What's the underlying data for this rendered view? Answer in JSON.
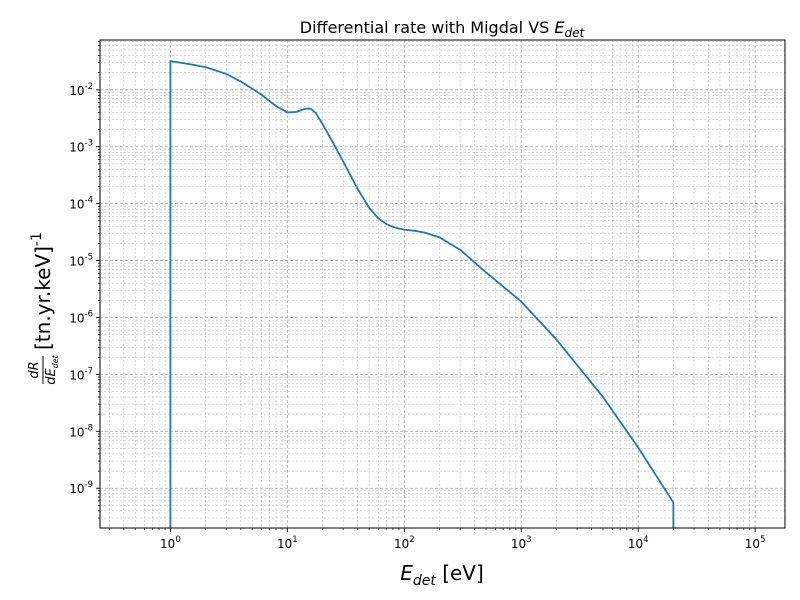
{
  "chart_data": {
    "type": "line",
    "title": "Differential rate with Migdal VS ",
    "title_math": {
      "base": "E",
      "sub": "det"
    },
    "xlabel_math": {
      "base": "E",
      "sub": "det"
    },
    "xlabel_unit": " [eV]",
    "ylabel_fraction": {
      "numerator": "dR",
      "denominator_base": "dE",
      "denominator_sub": "det"
    },
    "ylabel_unit": " [tn.yr.keV]",
    "ylabel_sup": "-1",
    "x_scale": "log",
    "y_scale": "log",
    "xlim": [
      0.25,
      180000
    ],
    "ylim": [
      2e-10,
      0.075
    ],
    "x_tick_base": "10",
    "x_tick_exponents": [
      "0",
      "1",
      "2",
      "3",
      "4",
      "5"
    ],
    "y_tick_base": "10",
    "y_tick_exponents": [
      "-9",
      "-8",
      "-7",
      "-6",
      "-5",
      "-4",
      "-3",
      "-2"
    ],
    "grid": {
      "major": true,
      "minor": true,
      "style": "dashed"
    },
    "series": [
      {
        "color": "#1f77b4",
        "x": [
          1.0,
          1.0,
          1.5,
          2.0,
          3.0,
          4.0,
          5.0,
          6.0,
          7.0,
          8.0,
          10.0,
          12.0,
          14.0,
          15.0,
          16.0,
          17.5,
          20.0,
          25.0,
          30.0,
          40.0,
          50.0,
          60.0,
          70.0,
          80.0,
          90.0,
          100.0,
          120.0,
          150.0,
          200.0,
          300.0,
          500.0,
          1000.0,
          2000.0,
          5000.0,
          10000.0,
          20000.0,
          20000.0
        ],
        "y": [
          2e-10,
          0.032,
          0.028,
          0.025,
          0.019,
          0.014,
          0.0105,
          0.0082,
          0.0064,
          0.0052,
          0.004,
          0.0041,
          0.0046,
          0.0047,
          0.0046,
          0.0039,
          0.0025,
          0.0011,
          0.00055,
          0.00018,
          8.5e-05,
          5.5e-05,
          4.4e-05,
          3.9e-05,
          3.65e-05,
          3.5e-05,
          3.35e-05,
          3.1e-05,
          2.55e-05,
          1.55e-05,
          6.2e-06,
          1.9e-06,
          4.1e-07,
          4e-08,
          5.2e-09,
          5.6e-10,
          2e-10
        ]
      }
    ]
  }
}
